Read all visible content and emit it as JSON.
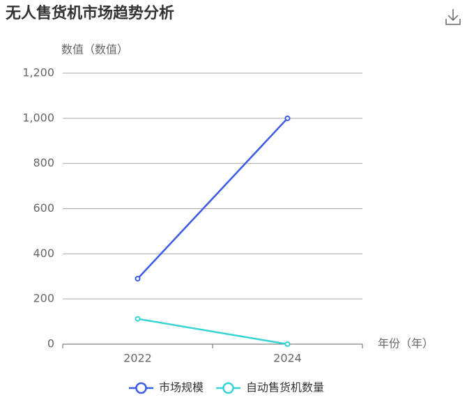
{
  "chart_data": {
    "type": "line",
    "title": "无人售货机市场趋势分析",
    "y_axis_label": "数值（数值）",
    "x_axis_label": "年份（年）",
    "categories": [
      "2022",
      "2024"
    ],
    "series": [
      {
        "name": "市场规模",
        "color": "#3a59e6",
        "values": [
          290,
          1000
        ]
      },
      {
        "name": "自动售货机数量",
        "color": "#36d3d3",
        "values": [
          112,
          0
        ]
      }
    ],
    "ylim": [
      0,
      1200
    ],
    "yticks": [
      0,
      200,
      400,
      600,
      800,
      {
        "value": 1000,
        "label": "1,000"
      },
      {
        "value": 1200,
        "label": "1,200"
      }
    ],
    "grid": true,
    "legend": "bottom"
  }
}
